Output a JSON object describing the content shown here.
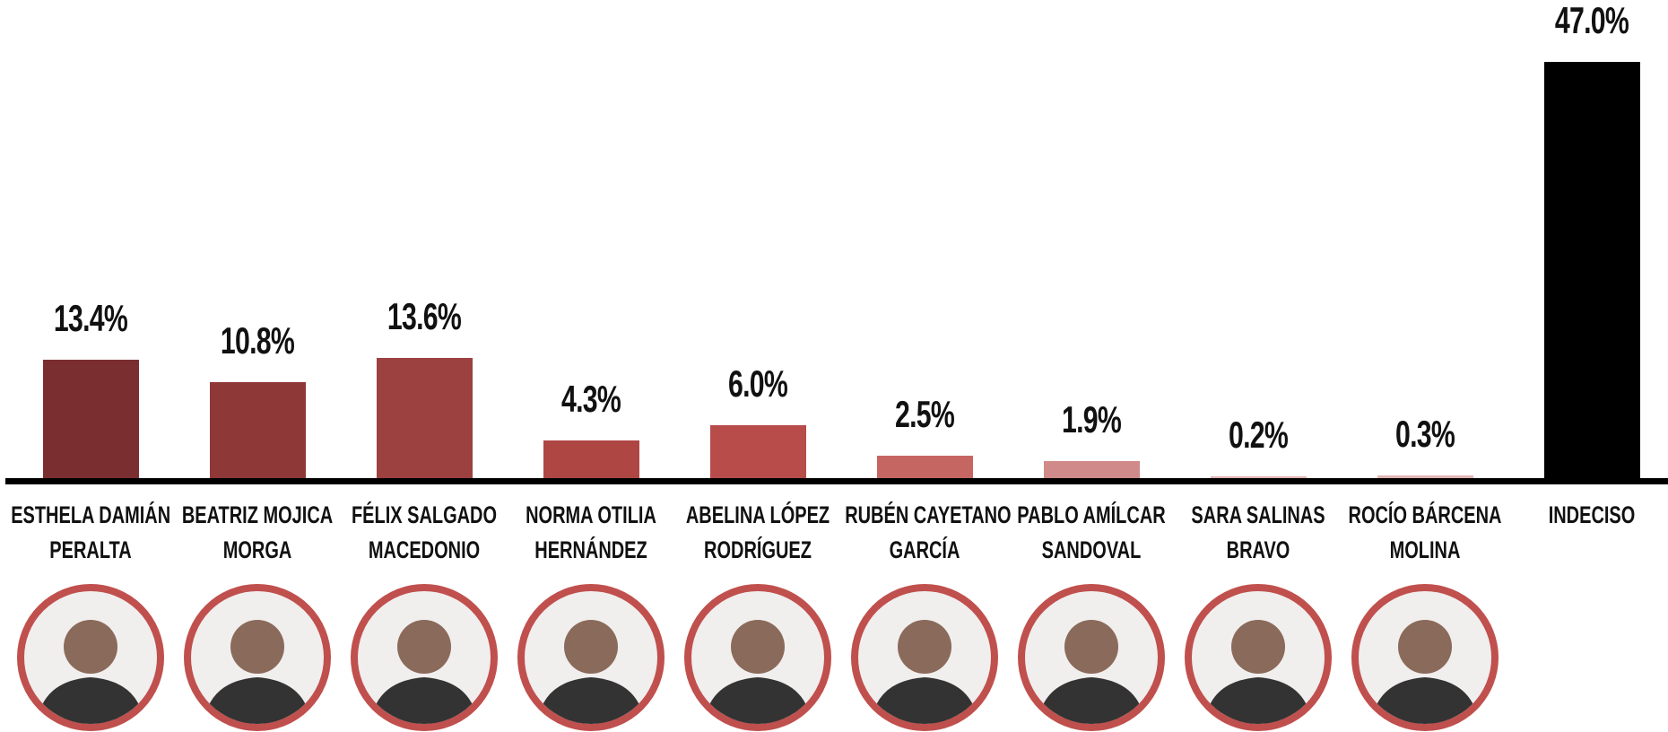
{
  "chart_data": {
    "type": "bar",
    "categories": [
      [
        "ESTHELA DAMIÁN",
        "PERALTA"
      ],
      [
        "BEATRIZ MOJICA",
        "MORGA"
      ],
      [
        "FÉLIX SALGADO",
        "MACEDONIO"
      ],
      [
        "NORMA OTILIA",
        "HERNÁNDEZ"
      ],
      [
        "ABELINA LÓPEZ",
        "RODRÍGUEZ"
      ],
      [
        "RUBÉN CAYETANO",
        "GARCÍA"
      ],
      [
        "PABLO AMÍLCAR",
        "SANDOVAL"
      ],
      [
        "SARA SALINAS",
        "BRAVO"
      ],
      [
        "ROCÍO BÁRCENA",
        "MOLINA"
      ],
      [
        "INDECISO"
      ]
    ],
    "values": [
      13.4,
      10.8,
      13.6,
      4.3,
      6.0,
      2.5,
      1.9,
      0.2,
      0.3,
      47.0
    ],
    "value_labels": [
      "13.4%",
      "10.8%",
      "13.6%",
      "4.3%",
      "6.0%",
      "2.5%",
      "1.9%",
      "0.2%",
      "0.3%",
      "47.0%"
    ],
    "colors": [
      "#7b2e30",
      "#8e3838",
      "#9c4040",
      "#ae4644",
      "#b84c4a",
      "#c66663",
      "#d08a89",
      "#e2b5b4",
      "#e2b5b4",
      "#000000"
    ]
  }
}
